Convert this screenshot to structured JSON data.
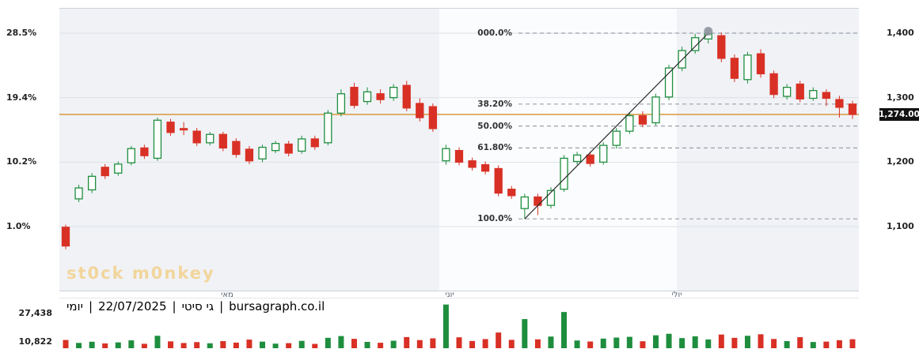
{
  "watermark": {
    "text": "st0ck m0nkey",
    "color": "#f5b942"
  },
  "info_bar": {
    "parts": [
      "יומי",
      "|",
      "22/07/2025",
      "|",
      "גי סיטי",
      "|",
      "bursagraph.co.il"
    ]
  },
  "chart_data": {
    "type": "candlestick",
    "instrument": "גי סיטי",
    "period": "יומי",
    "date": "22/07/2025",
    "source": "bursagraph.co.il",
    "last_price": 1274,
    "last_price_label": "1,274.00",
    "months": [
      "מאי",
      "יוני",
      "יולי"
    ],
    "price_axis": {
      "ticks": [
        1400,
        1300,
        1200,
        1100
      ],
      "labels": [
        "1,400",
        "1,300",
        "1,200",
        "1,100"
      ]
    },
    "percent_axis": {
      "labels": [
        "28.5%",
        "19.4%",
        "10.2%",
        "1.0%"
      ]
    },
    "volume_axis": {
      "labels": [
        "27,438",
        "10,822"
      ],
      "values": [
        27438,
        10822
      ]
    },
    "fibonacci": [
      {
        "label": "000.0%",
        "price": 1400
      },
      {
        "label": "38.20%",
        "price": 1290
      },
      {
        "label": "50.00%",
        "price": 1256
      },
      {
        "label": "61.80%",
        "price": 1222
      },
      {
        "label": "100.0%",
        "price": 1112
      }
    ],
    "trendline": {
      "from": {
        "index": 35,
        "price": 1112
      },
      "to": {
        "index": 49,
        "price": 1400
      }
    },
    "peak_marker": {
      "index": 49,
      "price": 1403
    },
    "colors": {
      "up": "#1e8e3e",
      "down": "#d93025",
      "last_price_line": "#d58f2b",
      "plot_bg": "#f0f2f6",
      "band_bg": "#fbfcfe",
      "chip_bg": "#111111",
      "grid": "#dde1e7",
      "fib_line": "#9aa0a8",
      "trend": "#2b2b2b"
    },
    "candles": [
      [
        1099,
        1103,
        1065,
        1070,
        6500
      ],
      [
        1143,
        1165,
        1138,
        1160,
        4200
      ],
      [
        1157,
        1183,
        1152,
        1178,
        5100
      ],
      [
        1192,
        1197,
        1174,
        1179,
        3800
      ],
      [
        1183,
        1201,
        1179,
        1197,
        4600
      ],
      [
        1199,
        1225,
        1195,
        1221,
        6200
      ],
      [
        1222,
        1227,
        1205,
        1210,
        3500
      ],
      [
        1206,
        1269,
        1202,
        1265,
        9800
      ],
      [
        1262,
        1267,
        1241,
        1246,
        5400
      ],
      [
        1252,
        1262,
        1242,
        1250,
        4100
      ],
      [
        1248,
        1253,
        1225,
        1230,
        4800
      ],
      [
        1230,
        1247,
        1226,
        1243,
        3900
      ],
      [
        1243,
        1247,
        1217,
        1222,
        5600
      ],
      [
        1232,
        1237,
        1207,
        1212,
        4400
      ],
      [
        1220,
        1225,
        1197,
        1202,
        6800
      ],
      [
        1205,
        1227,
        1200,
        1223,
        5200
      ],
      [
        1218,
        1233,
        1214,
        1229,
        3600
      ],
      [
        1228,
        1233,
        1209,
        1214,
        4000
      ],
      [
        1217,
        1241,
        1213,
        1236,
        5800
      ],
      [
        1236,
        1241,
        1219,
        1224,
        3400
      ],
      [
        1230,
        1281,
        1226,
        1276,
        8200
      ],
      [
        1276,
        1313,
        1271,
        1306,
        9600
      ],
      [
        1316,
        1323,
        1283,
        1288,
        7400
      ],
      [
        1294,
        1316,
        1289,
        1309,
        5000
      ],
      [
        1306,
        1313,
        1291,
        1297,
        4300
      ],
      [
        1300,
        1321,
        1295,
        1316,
        5900
      ],
      [
        1319,
        1326,
        1279,
        1284,
        8800
      ],
      [
        1291,
        1299,
        1263,
        1269,
        6400
      ],
      [
        1286,
        1291,
        1247,
        1252,
        7800
      ],
      [
        1202,
        1227,
        1196,
        1221,
        34500
      ],
      [
        1218,
        1223,
        1195,
        1200,
        8600
      ],
      [
        1202,
        1207,
        1187,
        1192,
        5700
      ],
      [
        1196,
        1201,
        1181,
        1186,
        7200
      ],
      [
        1190,
        1195,
        1147,
        1152,
        12400
      ],
      [
        1158,
        1163,
        1143,
        1148,
        6600
      ],
      [
        1128,
        1151,
        1112,
        1146,
        23000
      ],
      [
        1146,
        1151,
        1118,
        1133,
        7000
      ],
      [
        1133,
        1161,
        1128,
        1156,
        9200
      ],
      [
        1158,
        1211,
        1154,
        1206,
        28600
      ],
      [
        1201,
        1216,
        1196,
        1211,
        6100
      ],
      [
        1211,
        1216,
        1193,
        1198,
        5300
      ],
      [
        1200,
        1231,
        1196,
        1226,
        7600
      ],
      [
        1226,
        1253,
        1221,
        1248,
        8400
      ],
      [
        1248,
        1277,
        1244,
        1272,
        9000
      ],
      [
        1272,
        1279,
        1254,
        1259,
        5500
      ],
      [
        1261,
        1306,
        1257,
        1301,
        10200
      ],
      [
        1301,
        1351,
        1296,
        1346,
        11400
      ],
      [
        1346,
        1379,
        1341,
        1373,
        8000
      ],
      [
        1373,
        1399,
        1368,
        1393,
        9400
      ],
      [
        1391,
        1405,
        1384,
        1399,
        6900
      ],
      [
        1396,
        1401,
        1355,
        1361,
        10800
      ],
      [
        1361,
        1367,
        1324,
        1330,
        8200
      ],
      [
        1328,
        1371,
        1322,
        1366,
        9800
      ],
      [
        1368,
        1375,
        1331,
        1337,
        11000
      ],
      [
        1337,
        1342,
        1299,
        1305,
        7300
      ],
      [
        1302,
        1321,
        1297,
        1316,
        5600
      ],
      [
        1321,
        1326,
        1293,
        1298,
        8700
      ],
      [
        1299,
        1316,
        1295,
        1311,
        4900
      ],
      [
        1308,
        1313,
        1287,
        1299,
        5200
      ],
      [
        1297,
        1303,
        1269,
        1285,
        6300
      ],
      [
        1290,
        1295,
        1267,
        1274,
        7100
      ]
    ]
  }
}
